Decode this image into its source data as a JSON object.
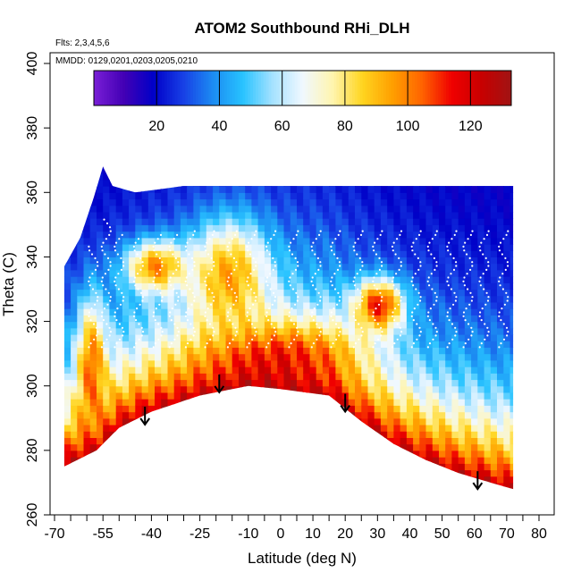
{
  "chart_data": {
    "type": "heatmap",
    "title": "ATOM2 Southbound RHi_DLH",
    "flights_note": "Flts: 2,3,4,5,6",
    "dates_note": "MMDD: 0129,0201,0203,0205,0210",
    "xlabel": "Latitude (deg N)",
    "ylabel": "Theta (C)",
    "xlim": [
      -70,
      80
    ],
    "ylim": [
      260,
      400
    ],
    "x_ticks": [
      -70,
      -55,
      -40,
      -25,
      -10,
      0,
      10,
      20,
      30,
      40,
      50,
      60,
      70,
      80
    ],
    "x_tick_labels": [
      "-70",
      "-55",
      "-40",
      "-25",
      "-10",
      "0",
      "10",
      "20",
      "30",
      "40",
      "50",
      "60",
      "70",
      "80"
    ],
    "x_minor_ticks": [
      -65,
      -60,
      -50,
      -45,
      -35,
      -30,
      -20,
      -15,
      -5,
      5,
      15,
      25,
      35,
      45,
      55,
      65,
      75
    ],
    "y_ticks": [
      260,
      280,
      300,
      320,
      340,
      360,
      380,
      400
    ],
    "y_tick_labels": [
      "260",
      "280",
      "300",
      "320",
      "340",
      "360",
      "380",
      "400"
    ],
    "colorbar": {
      "min": 0,
      "max": 133,
      "ticks": [
        20,
        40,
        60,
        80,
        100,
        120
      ],
      "tick_labels": [
        "20",
        "40",
        "60",
        "80",
        "100",
        "120"
      ],
      "colors": [
        "#7a1fd6",
        "#4300b5",
        "#0000c8",
        "#1840e6",
        "#1c8cf2",
        "#28c3ff",
        "#a6e2ff",
        "#f0f8ff",
        "#fff5b0",
        "#ffd520",
        "#ffa000",
        "#ff6400",
        "#f00000",
        "#c80000",
        "#a01414"
      ]
    },
    "data_extent": {
      "lat_min": -67,
      "lat_max": 72,
      "top_theta": [
        [
          -67,
          337
        ],
        [
          -62,
          346
        ],
        [
          -58,
          358
        ],
        [
          -55,
          368
        ],
        [
          -52,
          362
        ],
        [
          -45,
          360
        ],
        [
          -30,
          362
        ],
        [
          -10,
          362
        ],
        [
          10,
          362
        ],
        [
          40,
          362
        ],
        [
          60,
          362
        ],
        [
          70,
          362
        ]
      ],
      "bottom_theta": [
        [
          -67,
          275
        ],
        [
          -57,
          280
        ],
        [
          -50,
          287
        ],
        [
          -40,
          292
        ],
        [
          -25,
          297
        ],
        [
          -10,
          300
        ],
        [
          0,
          299
        ],
        [
          15,
          297
        ],
        [
          25,
          289
        ],
        [
          35,
          282
        ],
        [
          45,
          277
        ],
        [
          55,
          273
        ],
        [
          65,
          270
        ],
        [
          72,
          268
        ]
      ]
    },
    "tropopause_markers": [
      {
        "lat": -42,
        "theta": 288
      },
      {
        "lat": -19,
        "theta": 298
      },
      {
        "lat": 20,
        "theta": 292
      },
      {
        "lat": 61,
        "theta": 268
      }
    ],
    "high_rhi_regions": [
      {
        "lat": [
          -62,
          -55
        ],
        "theta": [
          285,
          325
        ],
        "rhi": 105
      },
      {
        "lat": [
          -47,
          -30
        ],
        "theta": [
          330,
          344
        ],
        "rhi": 100
      },
      {
        "lat": [
          -27,
          -5
        ],
        "theta": [
          318,
          350
        ],
        "rhi": 95
      },
      {
        "lat": [
          24,
          37
        ],
        "theta": [
          318,
          332
        ],
        "rhi": 115
      },
      {
        "lat": [
          -67,
          70
        ],
        "theta": [
          270,
          285
        ],
        "rhi": 80
      }
    ]
  }
}
